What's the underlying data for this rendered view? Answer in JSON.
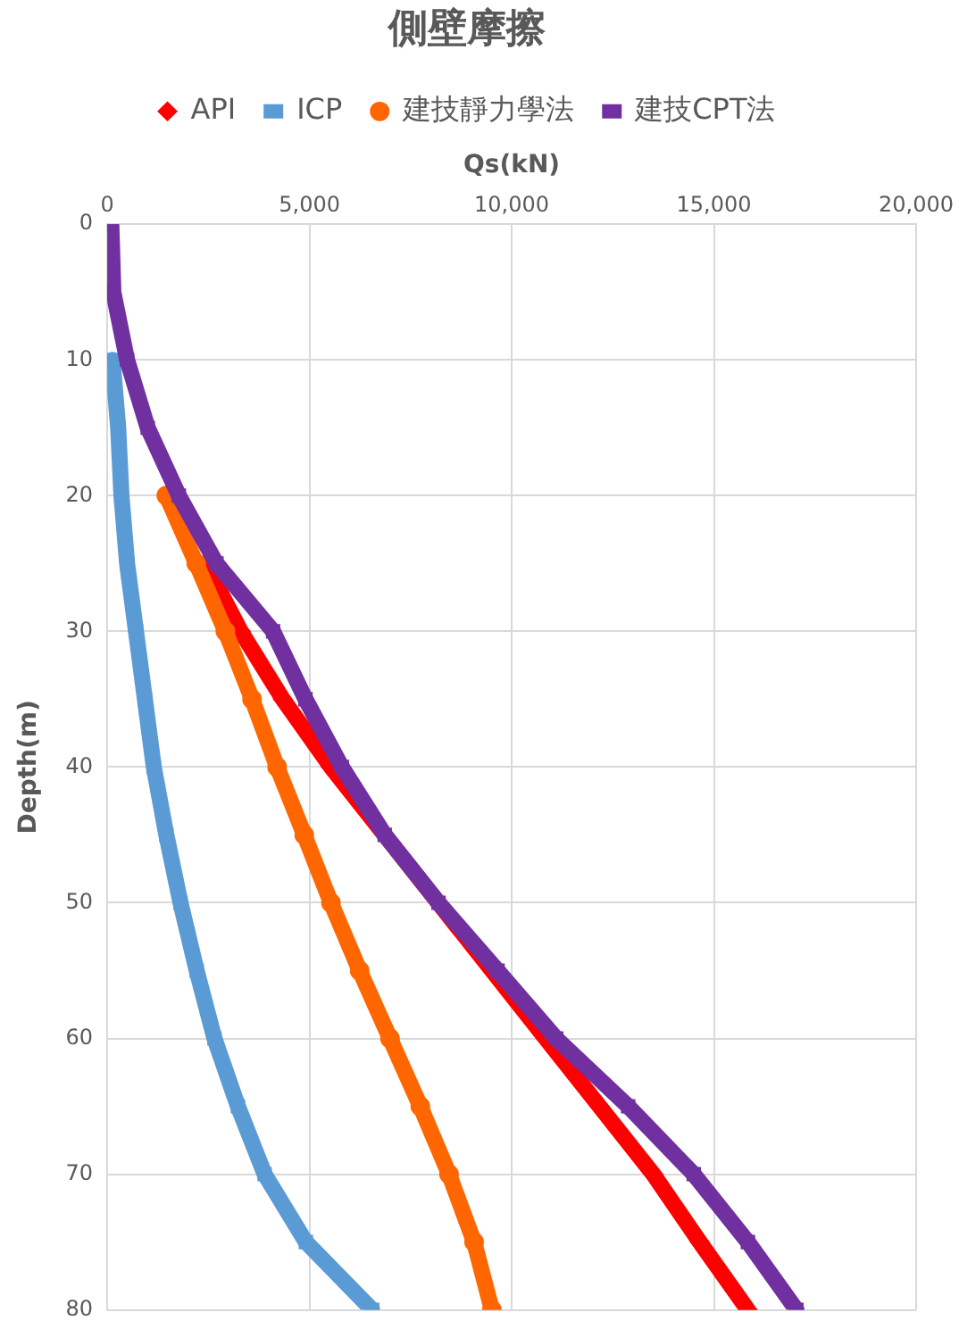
{
  "chart_data": {
    "type": "line",
    "title": "側壁摩擦",
    "xlabel": "Qs(kN)",
    "ylabel": "Depth(m)",
    "xlim": [
      0,
      20000
    ],
    "xticks": [
      0,
      {
        "value": 5000,
        "label": "5,000"
      },
      {
        "value": 10000,
        "label": "10,000"
      },
      {
        "value": 15000,
        "label": "15,000"
      },
      {
        "value": 20000,
        "label": "20,000"
      }
    ],
    "ylim": [
      80,
      0
    ],
    "yticks": [
      0,
      10,
      20,
      30,
      40,
      50,
      60,
      70,
      80
    ],
    "grid": true,
    "legend": "top",
    "line_style": "solid",
    "series": [
      {
        "name": "API",
        "color": "#ff0000",
        "marker": "diamond",
        "x": [
          2430,
          3300,
          4340,
          5530,
          10840,
          12170,
          13500,
          14650,
          15840
        ],
        "values": [
          25,
          30,
          35,
          40,
          60,
          65,
          70,
          75,
          80
        ]
      },
      {
        "name": "ICP",
        "color": "#5b9bd5",
        "marker": "square",
        "x": [
          130,
          270,
          350,
          490,
          710,
          930,
          1150,
          1460,
          1810,
          2210,
          2650,
          3230,
          3890,
          4910,
          6550
        ],
        "values": [
          10,
          15,
          20,
          25,
          30,
          35,
          40,
          45,
          50,
          55,
          60,
          65,
          70,
          75,
          80
        ]
      },
      {
        "name": "建技靜力學法",
        "color": "#ff6600",
        "marker": "circle",
        "x": [
          1460,
          2200,
          2920,
          3580,
          4200,
          4870,
          5530,
          6240,
          6990,
          7740,
          8450,
          9070,
          9510
        ],
        "values": [
          20,
          25,
          30,
          35,
          40,
          45,
          50,
          55,
          60,
          65,
          70,
          75,
          80
        ]
      },
      {
        "name": "建技CPT法",
        "color": "#7030a0",
        "marker": "square",
        "x": [
          100,
          150,
          490,
          1000,
          1770,
          2700,
          4100,
          4900,
          5800,
          6860,
          8190,
          9650,
          11100,
          12880,
          14500,
          15840,
          17040
        ],
        "values": [
          0,
          5,
          10,
          15,
          20,
          25,
          30,
          35,
          40,
          45,
          50,
          55,
          60,
          65,
          70,
          75,
          80
        ]
      }
    ]
  }
}
